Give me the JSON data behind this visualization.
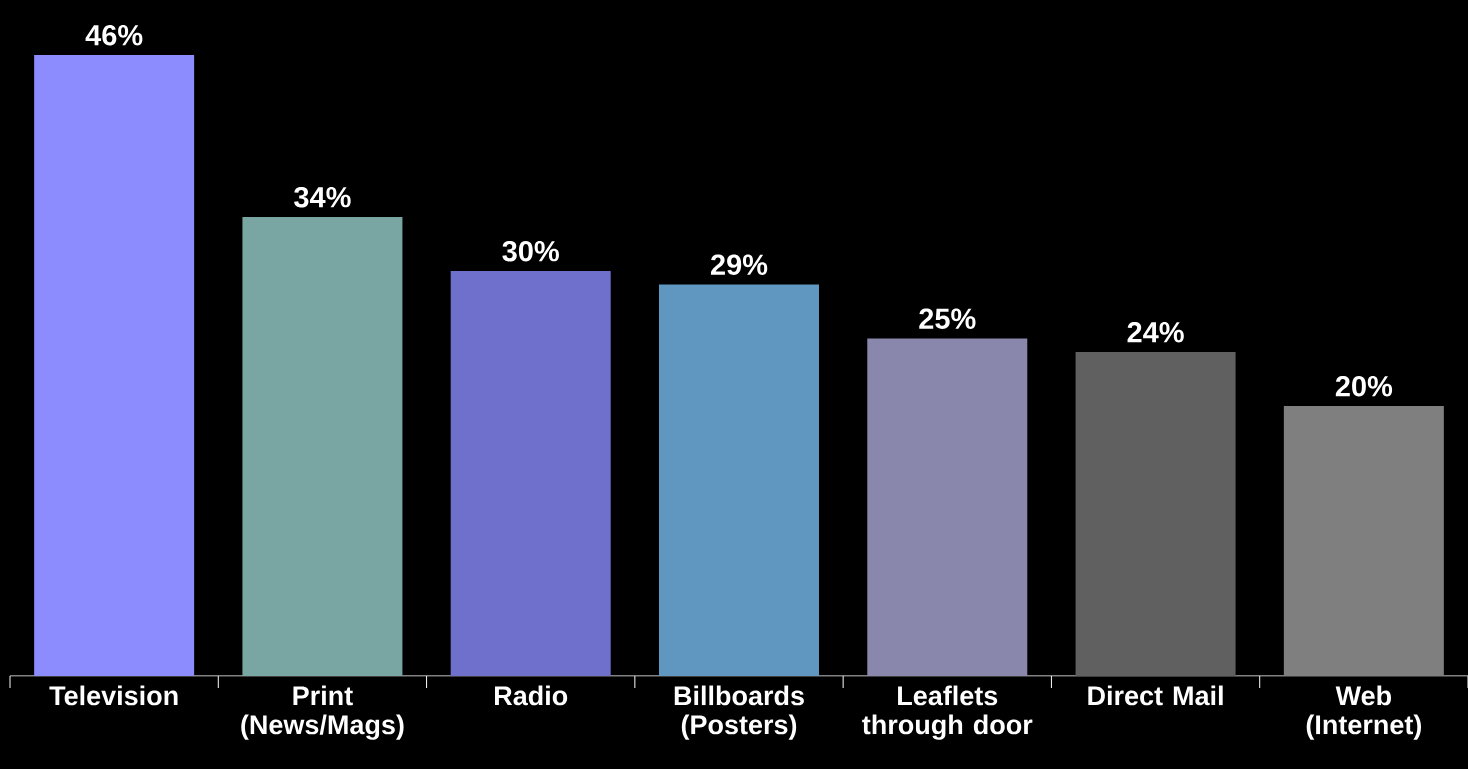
{
  "chart_data": {
    "type": "bar",
    "categories": [
      "Television",
      "Print (News/Mags)",
      "Radio",
      "Billboards (Posters)",
      "Leaflets through door",
      "Direct Mail",
      "Web (Internet)"
    ],
    "values": [
      46,
      34,
      30,
      29,
      25,
      24,
      20
    ],
    "value_labels": [
      "46%",
      "34%",
      "30%",
      "29%",
      "25%",
      "24%",
      "20%"
    ],
    "colors": [
      "#8c8cff",
      "#79a6a3",
      "#6f6fcc",
      "#5f97c0",
      "#8a87ad",
      "#606060",
      "#7f7f7f"
    ],
    "grid": false
  }
}
